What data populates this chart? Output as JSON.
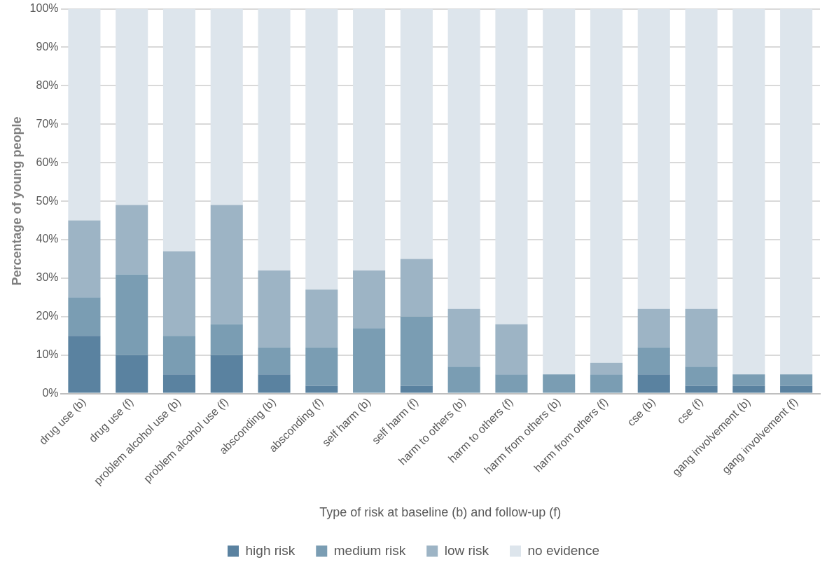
{
  "chart_data": {
    "type": "bar",
    "stacked": true,
    "xlabel": "Type of risk at baseline (b) and follow-up (f)",
    "ylabel": "Percentage of young people",
    "categories": [
      "drug use (b)",
      "drug use (f)",
      "problem alcohol use (b)",
      "problem alcohol use (f)",
      "absconding (b)",
      "absconding (f)",
      "self harm (b)",
      "self harm (f)",
      "harm to others (b)",
      "harm to others (f)",
      "harm from others (b)",
      "harm from others (f)",
      "cse (b)",
      "cse (f)",
      "gang involvement (b)",
      "gang involvement (f)"
    ],
    "series": [
      {
        "name": "high risk",
        "color": "#5a82a0",
        "values": [
          15,
          10,
          5,
          10,
          5,
          2,
          0,
          2,
          0,
          0,
          0,
          0,
          5,
          2,
          2,
          2
        ]
      },
      {
        "name": "medium risk",
        "color": "#7a9db3",
        "values": [
          10,
          21,
          10,
          8,
          7,
          10,
          17,
          18,
          7,
          5,
          5,
          5,
          7,
          5,
          3,
          3
        ]
      },
      {
        "name": "low risk",
        "color": "#9db4c5",
        "values": [
          20,
          18,
          22,
          31,
          20,
          15,
          15,
          15,
          15,
          13,
          0,
          3,
          10,
          15,
          0,
          0
        ]
      },
      {
        "name": "no evidence",
        "color": "#dde5ec",
        "values": [
          55,
          51,
          63,
          51,
          68,
          73,
          68,
          65,
          78,
          82,
          95,
          92,
          78,
          78,
          95,
          95
        ]
      }
    ],
    "ylim": [
      0,
      100
    ],
    "yticks": [
      {
        "value": 0,
        "label": "0%"
      },
      {
        "value": 10,
        "label": "10%"
      },
      {
        "value": 20,
        "label": "20%"
      },
      {
        "value": 30,
        "label": "30%"
      },
      {
        "value": 40,
        "label": "40%"
      },
      {
        "value": 50,
        "label": "50%"
      },
      {
        "value": 60,
        "label": "60%"
      },
      {
        "value": 70,
        "label": "70%"
      },
      {
        "value": 80,
        "label": "80%"
      },
      {
        "value": 90,
        "label": "90%"
      },
      {
        "value": 100,
        "label": "100%"
      }
    ],
    "grid": "y",
    "legend": "bottom"
  }
}
